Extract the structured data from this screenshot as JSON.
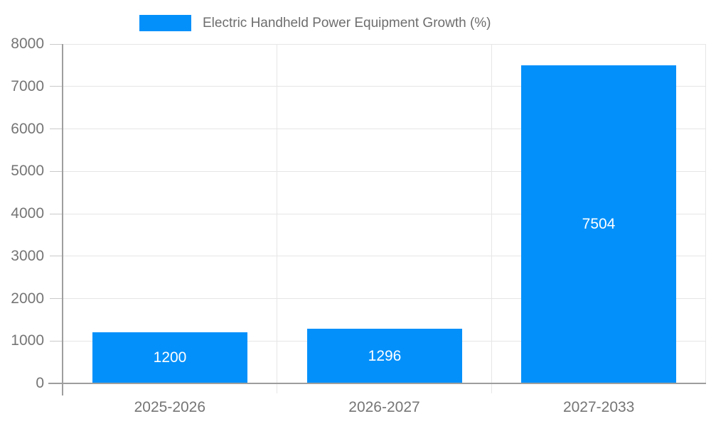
{
  "legend": {
    "label": "Electric Handheld Power Equipment Growth (%)"
  },
  "chart_data": {
    "type": "bar",
    "title": "Electric Handheld Power Equipment Growth (%)",
    "categories": [
      "2025-2026",
      "2026-2027",
      "2027-2033"
    ],
    "values": [
      1200,
      1296,
      7504
    ],
    "series": [
      {
        "name": "Electric Handheld Power Equipment Growth (%)",
        "values": [
          1200,
          1296,
          7504
        ]
      }
    ],
    "data_labels": [
      "1200",
      "1296",
      "7504"
    ],
    "xlabel": "",
    "ylabel": "",
    "ylim": [
      0,
      8000
    ],
    "yticks": [
      0,
      1000,
      2000,
      3000,
      4000,
      5000,
      6000,
      7000,
      8000
    ],
    "grid": true,
    "legend_position": "top",
    "colors": {
      "bar": "#0490FA",
      "grid": "#E6E6E6",
      "axis": "#9E9E9E",
      "tick": "#C9C9C9",
      "axis_label": "#757575",
      "legend_text": "#6E6E6E",
      "data_label": "#FFFFFF"
    }
  }
}
